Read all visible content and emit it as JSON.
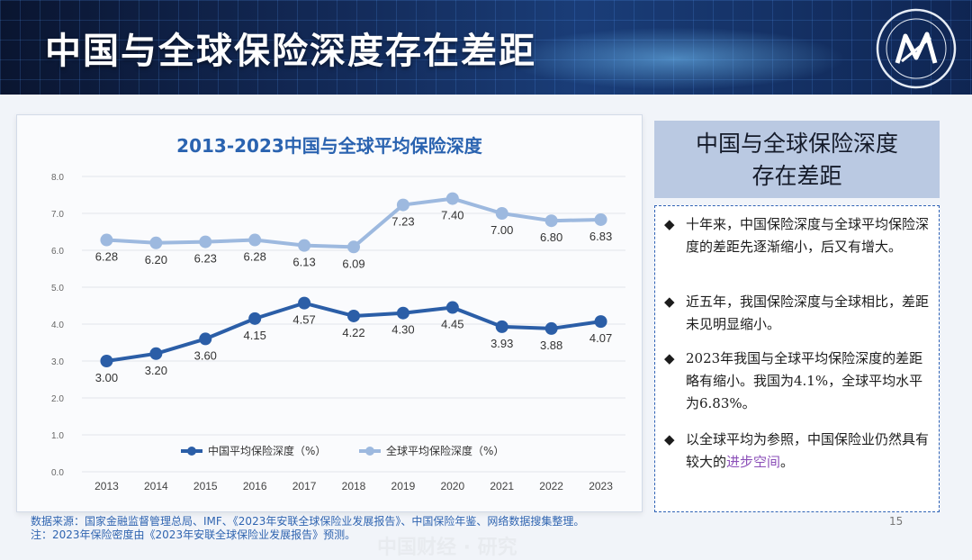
{
  "slide_title": "中国与全球保险深度存在差距",
  "chart_data": {
    "type": "line",
    "title": "2013-2023中国与全球平均保险深度",
    "xlabel": "",
    "ylabel": "",
    "x": [
      "2013",
      "2014",
      "2015",
      "2016",
      "2017",
      "2018",
      "2019",
      "2020",
      "2021",
      "2022",
      "2023"
    ],
    "ylim": [
      0,
      8
    ],
    "yticks": [
      "0.0",
      "1.0",
      "2.0",
      "3.0",
      "4.0",
      "5.0",
      "6.0",
      "7.0",
      "8.0"
    ],
    "grid": true,
    "legend_position": "bottom",
    "series": [
      {
        "name": "中国平均保险深度（%）",
        "color": "#2b5ea7",
        "values": [
          3.0,
          3.2,
          3.6,
          4.15,
          4.57,
          4.22,
          4.3,
          4.45,
          3.93,
          3.88,
          4.07
        ],
        "labels": [
          "3.00",
          "3.20",
          "3.60",
          "4.15",
          "4.57",
          "4.22",
          "4.30",
          "4.45",
          "3.93",
          "3.88",
          "4.07"
        ]
      },
      {
        "name": "全球平均保险深度（%）",
        "color": "#9db9df",
        "values": [
          6.28,
          6.2,
          6.23,
          6.28,
          6.13,
          6.09,
          7.23,
          7.4,
          7.0,
          6.8,
          6.83
        ],
        "labels": [
          "6.28",
          "6.20",
          "6.23",
          "6.28",
          "6.13",
          "6.09",
          "7.23",
          "7.40",
          "7.00",
          "6.80",
          "6.83"
        ]
      }
    ]
  },
  "side": {
    "heading_line1": "中国与全球保险深度",
    "heading_line2": "存在差距",
    "bullet_mark": "◆",
    "bullets": [
      {
        "text": "十年来，中国保险深度与全球平均保险深度的差距先逐渐缩小，后又有增大。"
      },
      {
        "text": "近五年，我国保险深度与全球相比，差距未见明显缩小。"
      },
      {
        "text": "2023年我国与全球平均保险深度的差距略有缩小。我国为4.1%，全球平均水平为6.83%。"
      },
      {
        "text_before": "以全球平均为参照，中国保险业仍然具有较大的",
        "text_highlight": "进步空间",
        "text_after": "。"
      }
    ]
  },
  "footer": {
    "source_line1": "数据来源：国家金融监督管理总局、IMF、《2023年安联全球保险业发展报告》、中国保险年鉴、网络数据搜集整理。",
    "source_line2": "注：2023年保险密度由《2023年安联全球保险业发展报告》预测。",
    "page_number": "15"
  }
}
